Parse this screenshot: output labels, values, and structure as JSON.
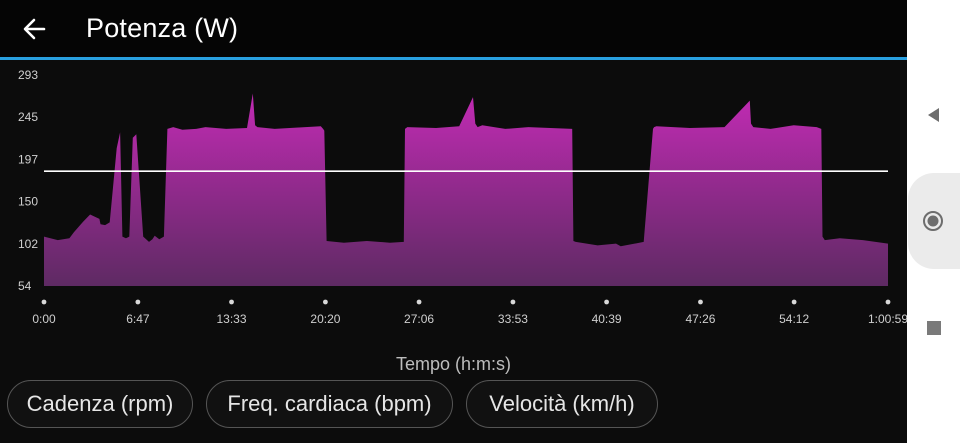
{
  "header": {
    "title": "Potenza (W)",
    "back_icon": "arrow-left-icon"
  },
  "colors": {
    "accent": "#29a0e0",
    "area_top": "#c22bb4",
    "area_bottom": "#5e2a63",
    "average_line": "#ffffff",
    "background": "#0c0c0c"
  },
  "chart_data": {
    "type": "area",
    "xlabel": "Tempo (h:m:s)",
    "ylabel": "",
    "y_ticks": [
      "293",
      "245",
      "197",
      "150",
      "102",
      "54"
    ],
    "ylim": [
      54,
      293
    ],
    "x_ticks": [
      "0:00",
      "6:47",
      "13:33",
      "20:20",
      "27:06",
      "33:53",
      "40:39",
      "47:26",
      "54:12",
      "1:00:59"
    ],
    "x_tick_seconds": [
      0,
      407,
      813,
      1220,
      1626,
      2033,
      2439,
      2846,
      3252,
      3659
    ],
    "average_line_value": 184,
    "series": [
      {
        "x_seconds": [
          0,
          60,
          110,
          130,
          170,
          200,
          240,
          245,
          265,
          285,
          315,
          330,
          340,
          355,
          370,
          385,
          400,
          430,
          455,
          470,
          480,
          500,
          520,
          535,
          560,
          600,
          660,
          700,
          790,
          880,
          905,
          915,
          925,
          1000,
          1200,
          1210,
          1215,
          1225,
          1300,
          1400,
          1500,
          1560,
          1565,
          1575,
          1700,
          1800,
          1860,
          1870,
          1880,
          1900,
          2000,
          2100,
          2290,
          2295,
          2305,
          2400,
          2480,
          2500,
          2600,
          2640,
          2645,
          2655,
          2800,
          2950,
          3060,
          3065,
          3075,
          3150,
          3250,
          3350,
          3370,
          3375,
          3385,
          3450,
          3550,
          3659
        ],
        "values": [
          110,
          106,
          108,
          115,
          127,
          135,
          130,
          124,
          123,
          126,
          210,
          228,
          110,
          108,
          110,
          222,
          226,
          110,
          104,
          107,
          111,
          107,
          110,
          232,
          234,
          231,
          232,
          234,
          232,
          233,
          272,
          236,
          234,
          232,
          235,
          232,
          230,
          105,
          103,
          105,
          103,
          104,
          232,
          234,
          233,
          235,
          268,
          238,
          234,
          236,
          232,
          234,
          232,
          105,
          104,
          100,
          102,
          99,
          104,
          232,
          234,
          235,
          233,
          234,
          264,
          238,
          234,
          232,
          236,
          234,
          232,
          110,
          106,
          108,
          106,
          102
        ]
      }
    ]
  },
  "chips": [
    {
      "label": "Cadenza (rpm)"
    },
    {
      "label": "Freq. cardiaca (bpm)"
    },
    {
      "label": "Velocità (km/h)"
    }
  ],
  "navbar": {
    "back_icon": "triangle-back-icon",
    "home_icon": "circle-home-icon",
    "recents_icon": "square-recents-icon"
  }
}
